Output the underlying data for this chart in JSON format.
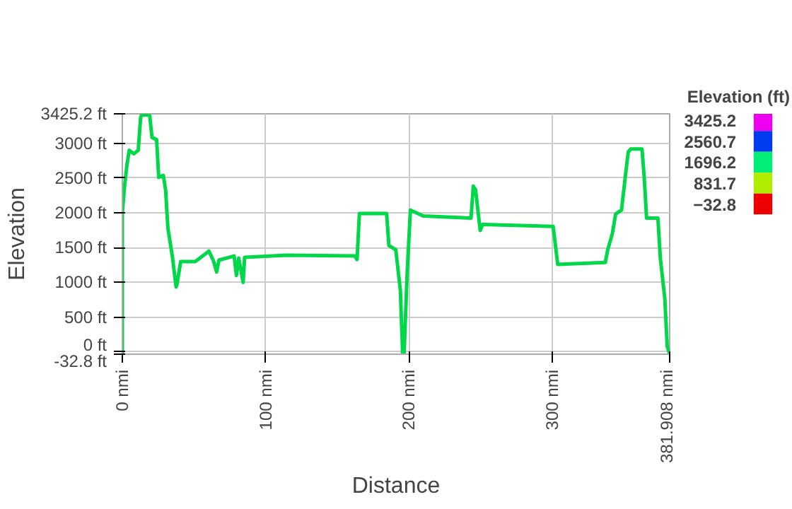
{
  "chart_data": {
    "type": "line",
    "xlabel": "Distance",
    "ylabel": "Elevation",
    "clabel": "Elevation (ft)",
    "cticks": [
      3425.2,
      2560.7,
      1696.2,
      831.7,
      -32.8
    ],
    "xlim": [
      0,
      381.908
    ],
    "xticks": [
      {
        "value": 0,
        "label": "0 nmi"
      },
      {
        "value": 100,
        "label": "100 nmi"
      },
      {
        "value": 200,
        "label": "200 nmi"
      },
      {
        "value": 300,
        "label": "300 nmi"
      },
      {
        "value": 381.908,
        "label": "381.908 nmi"
      }
    ],
    "ylim": [
      -32.8,
      3425.2
    ],
    "yticks": [
      {
        "value": -32.8,
        "label": "-32.8 ft"
      },
      {
        "value": 0,
        "label": "0 ft"
      },
      {
        "value": 500,
        "label": "500 ft"
      },
      {
        "value": 1000,
        "label": "1000 ft"
      },
      {
        "value": 1500,
        "label": "1500 ft"
      },
      {
        "value": 2000,
        "label": "2000 ft"
      },
      {
        "value": 2500,
        "label": "2500 ft"
      },
      {
        "value": 3000,
        "label": "3000 ft"
      },
      {
        "value": 3425.2,
        "label": "3425.2 ft"
      }
    ],
    "grid": true,
    "color": "#00d84a",
    "x": [
      0,
      0,
      1.6,
      3.2,
      4.8,
      8,
      11.1,
      12.7,
      13.6,
      19.1,
      20.7,
      23.9,
      25.4,
      28.6,
      30.2,
      31.8,
      35,
      37.5,
      38.2,
      40.7,
      50.9,
      60.4,
      63.6,
      65.8,
      67.4,
      78,
      79.6,
      81.2,
      84.3,
      85.3,
      114.5,
      162.2,
      163.8,
      165.4,
      184.4,
      186,
      190.8,
      194,
      195.6,
      196.6,
      198.8,
      201,
      210,
      243.3,
      244.9,
      246.5,
      249.7,
      251.3,
      300.6,
      303.8,
      337,
      338.7,
      341.9,
      344.2,
      348.3,
      349.9,
      351.5,
      353,
      354.7,
      362.6,
      364.2,
      365.8,
      373.7,
      375.4,
      378.5,
      380.2,
      381.9
    ],
    "values": [
      -32.8,
      2000,
      2390,
      2690,
      2900,
      2850,
      2900,
      3358,
      3425,
      3400,
      3085,
      3055,
      2510,
      2540,
      2327,
      1782,
      1358,
      933,
      980,
      1300,
      1300,
      1450,
      1310,
      1150,
      1320,
      1380,
      1100,
      1350,
      1000,
      1360,
      1390,
      1380,
      1330,
      1990,
      1990,
      1530,
      1470,
      885,
      -32.8,
      -32.8,
      1172,
      2040,
      1955,
      1925,
      2385,
      2330,
      1747,
      1833,
      1805,
      1259,
      1287,
      1470,
      1700,
      1983,
      2040,
      2330,
      2620,
      2875,
      2920,
      2920,
      2500,
      1925,
      1925,
      1345,
      770,
      80,
      -32.8
    ]
  }
}
